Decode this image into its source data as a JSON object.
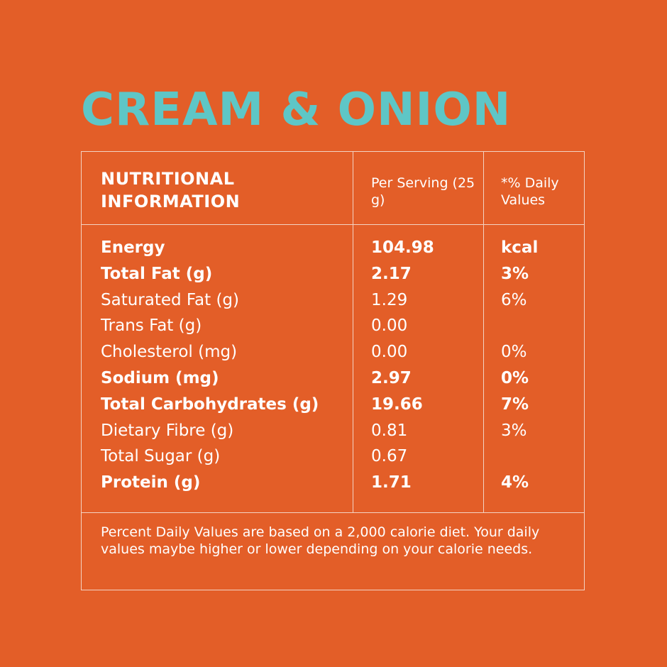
{
  "title": "CREAM & ONION",
  "table": {
    "header": [
      "NUTRITIONAL INFORMATION",
      "Per Serving (25 g)",
      "*% Daily Values"
    ],
    "rows": [
      {
        "name": "Energy",
        "value": "104.98",
        "daily": "kcal",
        "bold": true
      },
      {
        "name": "Total Fat (g)",
        "value": "2.17",
        "daily": "3%",
        "bold": true
      },
      {
        "name": "Saturated Fat (g)",
        "value": "1.29",
        "daily": "6%",
        "bold": false
      },
      {
        "name": "Trans Fat (g)",
        "value": "0.00",
        "daily": null,
        "bold": false
      },
      {
        "name": "Cholesterol (mg)",
        "value": "0.00",
        "daily": "0%",
        "bold": false
      },
      {
        "name": "Sodium (mg)",
        "value": "2.97",
        "daily": "0%",
        "bold": true
      },
      {
        "name": "Total Carbohydrates (g)",
        "value": "19.66",
        "daily": "7%",
        "bold": true
      },
      {
        "name": "Dietary Fibre (g)",
        "value": "0.81",
        "daily": "3%",
        "bold": false
      },
      {
        "name": "Total Sugar (g)",
        "value": "0.67",
        "daily": null,
        "bold": false
      },
      {
        "name": "Protein (g)",
        "value": "1.71",
        "daily": "4%",
        "bold": true
      }
    ],
    "footnote": "Percent Daily Values are based on a 2,000 calorie diet. Your daily values maybe higher or lower depending on your calorie needs."
  }
}
